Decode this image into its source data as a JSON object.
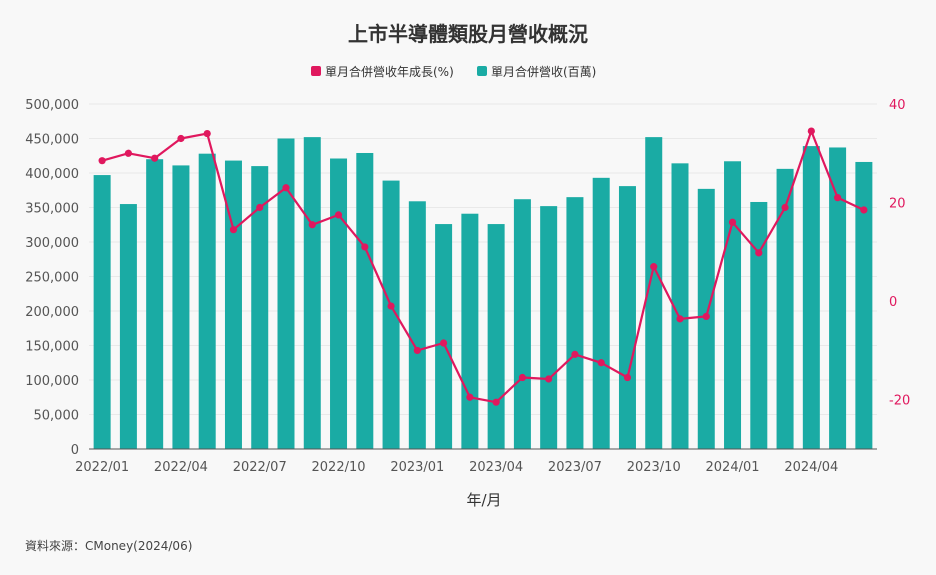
{
  "title": "上市半導體類股月營收概況",
  "source_text": "資料來源：CMoney(2024/06)",
  "colors": {
    "bar": "#1aaba4",
    "line": "#e0185e",
    "text": "#333333",
    "right_axis": "#e0185e"
  },
  "chart_data": {
    "type": "bar",
    "title": "上市半導體類股月營收概況",
    "xlabel": "年/月",
    "ylabel": "",
    "legend_position": "top-center",
    "grid": true,
    "categories": [
      "2022/01",
      "2022/02",
      "2022/03",
      "2022/04",
      "2022/05",
      "2022/06",
      "2022/07",
      "2022/08",
      "2022/09",
      "2022/10",
      "2022/11",
      "2022/12",
      "2023/01",
      "2023/02",
      "2023/03",
      "2023/04",
      "2023/05",
      "2023/06",
      "2023/07",
      "2023/08",
      "2023/09",
      "2023/10",
      "2023/11",
      "2023/12",
      "2024/01",
      "2024/02",
      "2024/03",
      "2024/04",
      "2024/05",
      "2024/06"
    ],
    "x_tick_labels": [
      "2022/01",
      "2022/04",
      "2022/07",
      "2022/10",
      "2023/01",
      "2023/04",
      "2023/07",
      "2023/10",
      "2024/01",
      "2024/04"
    ],
    "ylim_left": [
      0,
      500000
    ],
    "yticks_left": [
      "0",
      "50,000",
      "100,000",
      "150,000",
      "200,000",
      "250,000",
      "300,000",
      "350,000",
      "400,000",
      "450,000",
      "500,000"
    ],
    "ylim_right": [
      -30,
      40
    ],
    "yticks_right": [
      "-20",
      "0",
      "20",
      "40"
    ],
    "legend": [
      "單月合併營收年成長(%)",
      "單月合併營收(百萬)"
    ],
    "series": [
      {
        "name": "單月合併營收(百萬)",
        "type": "bar",
        "axis": "left",
        "values": [
          397000,
          355000,
          420000,
          411000,
          428000,
          418000,
          410000,
          450000,
          452000,
          421000,
          429000,
          389000,
          359000,
          326000,
          341000,
          326000,
          362000,
          352000,
          365000,
          393000,
          381000,
          452000,
          414000,
          377000,
          417000,
          358000,
          406000,
          439000,
          437000,
          416000
        ]
      },
      {
        "name": "單月合併營收年成長(%)",
        "type": "line",
        "axis": "right",
        "values": [
          28.5,
          30,
          29,
          33,
          34,
          14.5,
          19,
          23,
          15.5,
          17.5,
          11,
          -1,
          -10,
          -8.5,
          -19.5,
          -20.5,
          -15.5,
          -15.8,
          -10.8,
          -12.5,
          -15.5,
          7,
          -3.6,
          -3.1,
          16,
          9.8,
          19,
          34.5,
          21,
          18.5
        ]
      }
    ]
  }
}
